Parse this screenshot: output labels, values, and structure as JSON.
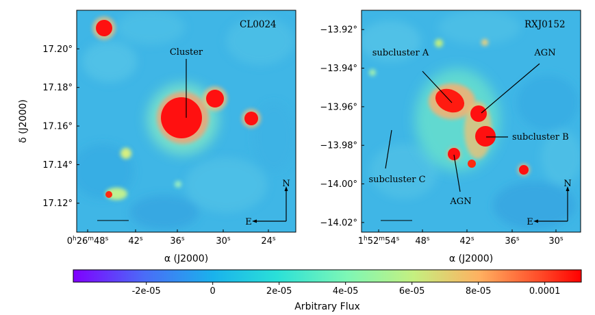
{
  "chart_data": [
    {
      "type": "heatmap",
      "id": "left",
      "title": "CL0024",
      "xlabel": "α (J2000)",
      "ylabel": "δ (J2000)",
      "x_ticks": [
        {
          "h": "0",
          "m": "26",
          "s": "48"
        },
        {
          "s": "42"
        },
        {
          "s": "36"
        },
        {
          "s": "30"
        },
        {
          "s": "24"
        }
      ],
      "y_ticks": [
        "17.20°",
        "17.18°",
        "17.16°",
        "17.14°",
        "17.12°"
      ],
      "y_tick_values": [
        17.2,
        17.18,
        17.16,
        17.14,
        17.12
      ],
      "ylim": [
        17.105,
        17.22
      ],
      "annotations": [
        {
          "text": "Cluster"
        }
      ],
      "compass": {
        "north": "N",
        "east": "E"
      }
    },
    {
      "type": "heatmap",
      "id": "right",
      "title": "RXJ0152",
      "xlabel": "α (J2000)",
      "ylabel": "",
      "x_ticks": [
        {
          "h": "1",
          "m": "52",
          "s": "54"
        },
        {
          "s": "48"
        },
        {
          "s": "42"
        },
        {
          "s": "36"
        },
        {
          "s": "30"
        }
      ],
      "y_ticks": [
        "−13.92°",
        "−13.94°",
        "−13.96°",
        "−13.98°",
        "−14.00°",
        "−14.02°"
      ],
      "y_tick_values": [
        -13.92,
        -13.94,
        -13.96,
        -13.98,
        -14.0,
        -14.02
      ],
      "ylim": [
        -14.025,
        -13.91
      ],
      "annotations": [
        {
          "text": "subcluster A"
        },
        {
          "text": "AGN"
        },
        {
          "text": "subcluster B"
        },
        {
          "text": "subcluster C"
        },
        {
          "text": "AGN"
        }
      ],
      "compass": {
        "north": "N",
        "east": "E"
      }
    }
  ],
  "colorbar": {
    "label": "Arbitrary Flux",
    "ticks": [
      "-2e-05",
      "0",
      "2e-05",
      "4e-05",
      "6e-05",
      "8e-05",
      "0.0001"
    ],
    "tick_values": [
      -2e-05,
      0,
      2e-05,
      4e-05,
      6e-05,
      8e-05,
      0.0001
    ],
    "range": [
      -4.2e-05,
      0.000111
    ],
    "colormap": "rainbow",
    "colors": [
      "#8000ff",
      "#2adddd",
      "#d4dd80",
      "#ff0000"
    ]
  }
}
